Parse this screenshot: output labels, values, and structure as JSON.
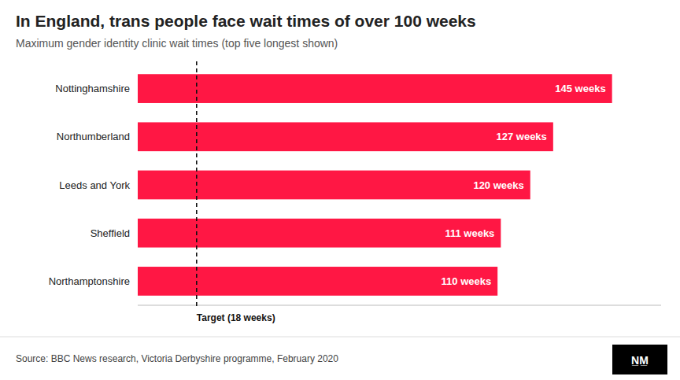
{
  "chart_data": {
    "type": "bar",
    "orientation": "horizontal",
    "title": "In England, trans people face wait times of over 100 weeks",
    "subtitle": "Maximum gender identity clinic wait times (top five longest shown)",
    "categories": [
      "Nottinghamshire",
      "Northumberland",
      "Leeds and York",
      "Sheffield",
      "Northamptonshire"
    ],
    "values": [
      145,
      127,
      120,
      111,
      110
    ],
    "value_labels": [
      "145 weeks",
      "127 weeks",
      "120 weeks",
      "111 weeks",
      "110 weeks"
    ],
    "data_labels": true,
    "color": "#FF1744",
    "xlim": [
      0,
      160
    ],
    "tick_labels": "y",
    "grid": false,
    "annotations": [
      {
        "text": "Target (18 weeks)",
        "x": 18
      }
    ],
    "source": "Source: BBC News research, Victoria Derbyshire programme, February 2020",
    "logo": "N̲M̲"
  }
}
